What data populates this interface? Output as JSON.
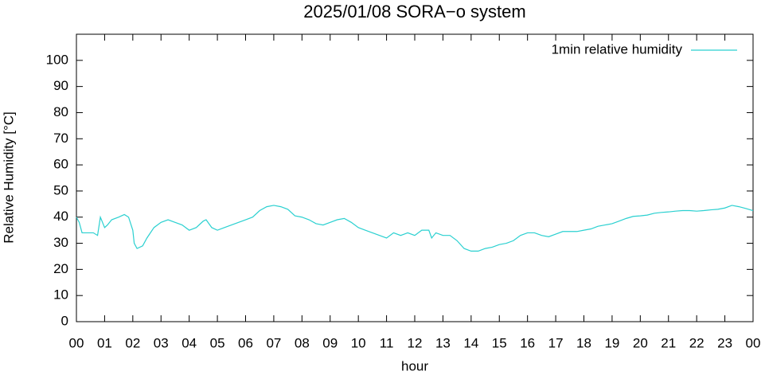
{
  "chart_data": {
    "type": "line",
    "title": "2025/01/08 SORA−o system",
    "x_label": "hour",
    "y_label": "Relative Humidity [°C]",
    "xlim": [
      0,
      24
    ],
    "ylim": [
      0,
      110
    ],
    "xticks": [
      {
        "value": 0,
        "label": "00"
      },
      {
        "value": 1,
        "label": "01"
      },
      {
        "value": 2,
        "label": "02"
      },
      {
        "value": 3,
        "label": "03"
      },
      {
        "value": 4,
        "label": "04"
      },
      {
        "value": 5,
        "label": "05"
      },
      {
        "value": 6,
        "label": "06"
      },
      {
        "value": 7,
        "label": "07"
      },
      {
        "value": 8,
        "label": "08"
      },
      {
        "value": 9,
        "label": "09"
      },
      {
        "value": 10,
        "label": "10"
      },
      {
        "value": 11,
        "label": "11"
      },
      {
        "value": 12,
        "label": "12"
      },
      {
        "value": 13,
        "label": "13"
      },
      {
        "value": 14,
        "label": "14"
      },
      {
        "value": 15,
        "label": "15"
      },
      {
        "value": 16,
        "label": "16"
      },
      {
        "value": 17,
        "label": "17"
      },
      {
        "value": 18,
        "label": "18"
      },
      {
        "value": 19,
        "label": "19"
      },
      {
        "value": 20,
        "label": "20"
      },
      {
        "value": 21,
        "label": "21"
      },
      {
        "value": 22,
        "label": "22"
      },
      {
        "value": 23,
        "label": "23"
      },
      {
        "value": 24,
        "label": "00"
      }
    ],
    "yticks": [
      0,
      10,
      20,
      30,
      40,
      50,
      60,
      70,
      80,
      90,
      100
    ],
    "legend_position": "top-right",
    "x": [
      0,
      0.1,
      0.2,
      0.4,
      0.6,
      0.75,
      0.85,
      1,
      1.1,
      1.25,
      1.5,
      1.7,
      1.85,
      2,
      2.05,
      2.15,
      2.35,
      2.5,
      2.75,
      3,
      3.25,
      3.5,
      3.75,
      4,
      4.25,
      4.5,
      4.6,
      4.8,
      5,
      5.25,
      5.5,
      5.75,
      6,
      6.25,
      6.5,
      6.75,
      7,
      7.25,
      7.5,
      7.75,
      8,
      8.25,
      8.5,
      8.75,
      9,
      9.25,
      9.5,
      9.75,
      10,
      10.25,
      10.5,
      10.75,
      11,
      11.25,
      11.5,
      11.75,
      12,
      12.25,
      12.5,
      12.6,
      12.75,
      13,
      13.25,
      13.5,
      13.75,
      14,
      14.25,
      14.5,
      14.75,
      15,
      15.25,
      15.5,
      15.75,
      16,
      16.25,
      16.5,
      16.75,
      17,
      17.25,
      17.5,
      17.75,
      18,
      18.25,
      18.5,
      18.75,
      19,
      19.25,
      19.5,
      19.75,
      20,
      20.25,
      20.5,
      20.75,
      21,
      21.25,
      21.5,
      21.75,
      22,
      22.25,
      22.5,
      22.75,
      23,
      23.25,
      23.5,
      23.75,
      24
    ],
    "series": [
      {
        "name": "1min relative humidity",
        "color": "#2ad0d0",
        "values": [
          40,
          38,
          34,
          34,
          34,
          33,
          40,
          36,
          37,
          39,
          40,
          41,
          40,
          35,
          30,
          28,
          29,
          32,
          36,
          38,
          39,
          38,
          37,
          35,
          36,
          38.5,
          39,
          36,
          35,
          36,
          37,
          38,
          39,
          40,
          42.5,
          44,
          44.5,
          44,
          43,
          40.5,
          40,
          39,
          37.5,
          37,
          38,
          39,
          39.5,
          38,
          36,
          35,
          34,
          33,
          32,
          34,
          33,
          34,
          33,
          35,
          35,
          32,
          34,
          33,
          33,
          31,
          28,
          27,
          27,
          28,
          28.5,
          29.5,
          30,
          31,
          33,
          34,
          34,
          33,
          32.5,
          33.5,
          34.5,
          34.5,
          34.5,
          35,
          35.5,
          36.5,
          37,
          37.5,
          38.5,
          39.5,
          40.3,
          40.5,
          40.8,
          41.5,
          41.8,
          42,
          42.3,
          42.5,
          42.5,
          42.3,
          42.5,
          42.8,
          43,
          43.5,
          44.5,
          44,
          43.3,
          42.5
        ]
      }
    ]
  }
}
